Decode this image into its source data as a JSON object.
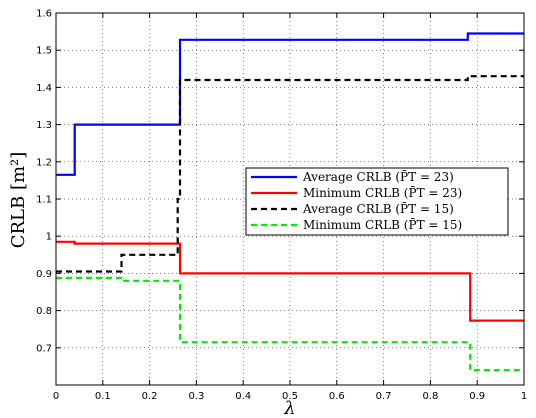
{
  "chart_data": {
    "type": "line",
    "xlabel": "λ",
    "ylabel": "CRLB [m²]",
    "xlim": [
      0,
      1
    ],
    "ylim": [
      0.6,
      1.6
    ],
    "xticks": [
      "0",
      "0.1",
      "0.2",
      "0.3",
      "0.4",
      "0.5",
      "0.6",
      "0.7",
      "0.8",
      "0.9",
      "1"
    ],
    "yticks": [
      "0.7",
      "0.8",
      "0.9",
      "1",
      "1.1",
      "1.2",
      "1.3",
      "1.4",
      "1.5",
      "1.6"
    ],
    "grid": true,
    "legend_position": "right",
    "series": [
      {
        "name": "Average CRLB (P̄T = 23)",
        "color": "#0000ff",
        "dash": "solid",
        "x": [
          0,
          0.04,
          0.04,
          0.265,
          0.265,
          0.88,
          0.88,
          1
        ],
        "y": [
          1.165,
          1.165,
          1.3,
          1.3,
          1.528,
          1.528,
          1.545,
          1.545
        ]
      },
      {
        "name": "Minimum CRLB (P̄T = 23)",
        "color": "#ff0000",
        "dash": "solid",
        "x": [
          0,
          0.04,
          0.04,
          0.265,
          0.265,
          0.885,
          0.885,
          1
        ],
        "y": [
          0.985,
          0.985,
          0.98,
          0.98,
          0.9,
          0.9,
          0.773,
          0.773
        ]
      },
      {
        "name": "Average CRLB (P̄T = 15)",
        "color": "#000000",
        "dash": "dashed",
        "x": [
          0,
          0.14,
          0.14,
          0.26,
          0.26,
          0.265,
          0.265,
          0.88,
          0.88,
          1
        ],
        "y": [
          0.905,
          0.905,
          0.95,
          0.95,
          1.1,
          1.1,
          1.42,
          1.42,
          1.43,
          1.43
        ]
      },
      {
        "name": "Minimum CRLB (P̄T = 15)",
        "color": "#00ee00",
        "dash": "dashed",
        "x": [
          0,
          0.14,
          0.14,
          0.265,
          0.265,
          0.885,
          0.885,
          1
        ],
        "y": [
          0.888,
          0.888,
          0.88,
          0.88,
          0.715,
          0.715,
          0.64,
          0.64
        ]
      }
    ]
  }
}
